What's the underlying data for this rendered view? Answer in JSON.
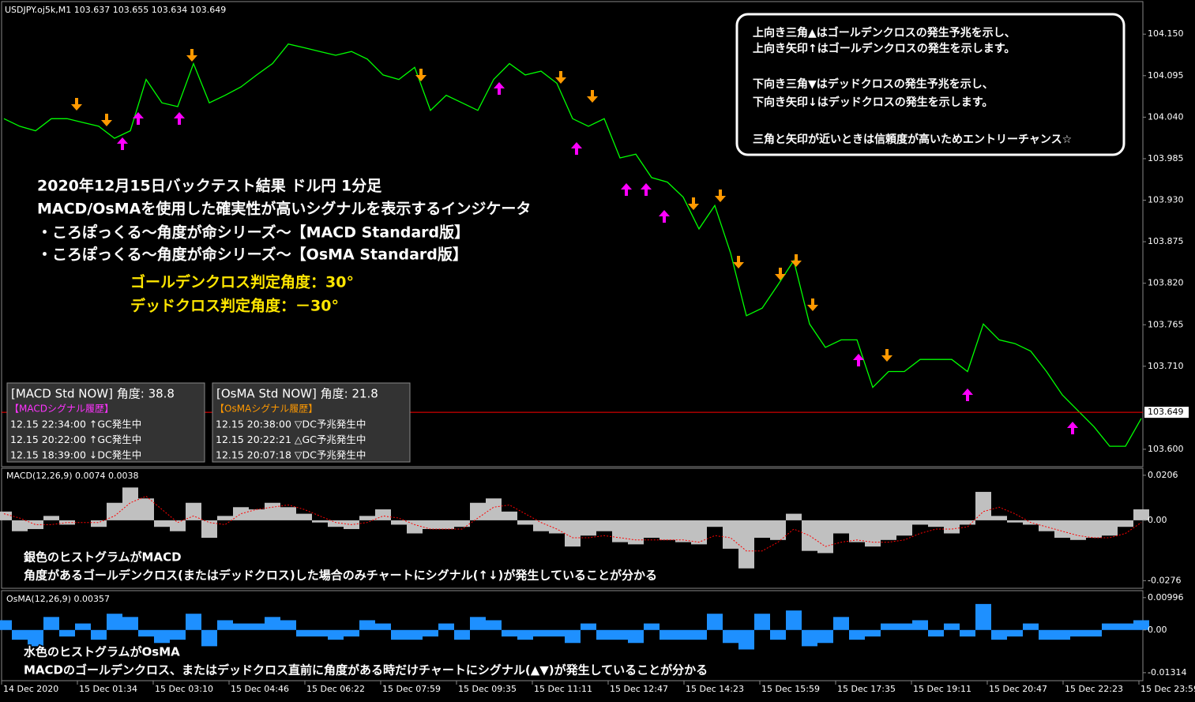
{
  "chart_data": [
    {
      "type": "line",
      "header": "USDJPY.oj5k,M1  103.637 103.655 103.634 103.649",
      "color": "#00ff00",
      "values": [
        104.038,
        104.028,
        104.022,
        104.038,
        104.038,
        104.033,
        104.028,
        104.012,
        104.022,
        104.09,
        104.059,
        104.054,
        104.111,
        104.059,
        104.069,
        104.08,
        104.096,
        104.111,
        104.137,
        104.132,
        104.127,
        104.122,
        104.127,
        104.117,
        104.096,
        104.09,
        104.106,
        104.049,
        104.069,
        104.059,
        104.049,
        104.09,
        104.111,
        104.096,
        104.101,
        104.085,
        104.038,
        104.028,
        104.038,
        103.986,
        103.991,
        103.96,
        103.954,
        103.934,
        103.892,
        103.923,
        103.86,
        103.777,
        103.787,
        103.818,
        103.85,
        103.766,
        103.735,
        103.745,
        103.745,
        103.682,
        103.703,
        103.703,
        103.719,
        103.719,
        103.719,
        103.703,
        103.766,
        103.745,
        103.74,
        103.73,
        103.703,
        103.672,
        103.651,
        103.63,
        103.604,
        103.604,
        103.641
      ],
      "ylim": [
        103.578,
        104.19
      ],
      "yticks": [
        {
          "value": 104.15,
          "label": "104.150"
        },
        104.095,
        {
          "value": 104.04,
          "label": "104.040"
        },
        103.985,
        {
          "value": 103.93,
          "label": "103.930"
        },
        103.875,
        {
          "value": 103.82,
          "label": "103.820"
        },
        103.765,
        {
          "value": 103.71,
          "label": "103.710"
        },
        {
          "value": 103.6,
          "label": "103.600"
        }
      ],
      "current_price": 103.649,
      "current_color": "#ff0000",
      "xlabels": [
        "14 Dec 2020",
        "15 Dec 01:34",
        "15 Dec 03:10",
        "15 Dec 04:46",
        "15 Dec 06:22",
        "15 Dec 07:59",
        "15 Dec 09:35",
        "15 Dec 11:11",
        "15 Dec 12:47",
        "15 Dec 14:23",
        "15 Dec 15:59",
        "15 Dec 17:35",
        "15 Dec 19:11",
        "15 Dec 20:47",
        "15 Dec 22:23",
        "15 Dec 23:59"
      ],
      "note_lines": [
        "上向き三角▲はゴールデンクロスの発生予兆を示し、",
        "上向き矢印↑はゴールデンクロスの発生を示します。",
        "下向き三角▼はデッドクロスの発生予兆を示し、",
        "下向き矢印↓はデッドクロスの発生を示します。",
        "三角と矢印が近いときは信頼度が高いためエントリーチャンス☆"
      ],
      "annotations": [
        "2020年12月15日バックテスト結果 ドル円 1分足",
        "MACD/OsMAを使用した確実性が高いシグナルを表示するインジケータ",
        "・ころぽっくる～角度が命シリーズ～【MACD Standard版】",
        "・ころぽっくる～角度が命シリーズ～【OsMA Standard版】"
      ],
      "thresholds": [
        "ゴールデンクロス判定角度：30°",
        "デッドクロス判定角度：－30°"
      ],
      "panels": [
        {
          "title": "[MACD Std NOW] 角度: 38.8",
          "subtitle": "【MACDシグナル履歴】",
          "color": "#ff33ff",
          "rows": [
            "12.15 22:34:00 ↑GC発生中",
            "12.15 20:22:00 ↑GC発生中",
            "12.15 18:39:00 ↓DC発生中"
          ]
        },
        {
          "title": "[OsMA Std NOW] 角度: 21.8",
          "subtitle": "【OsMAシグナル履歴】",
          "color": "#ff9900",
          "rows": [
            "12.15 20:38:00 ▽DC予兆発生中",
            "12.15 20:22:21 △GC予兆発生中",
            "12.15 20:07:18 ▽DC予兆発生中"
          ]
        }
      ]
    },
    {
      "type": "bar",
      "title": "MACD(12,26,9) 0.0074 0.0038",
      "series": [
        {
          "type": "bar",
          "color": "#c0c0c0",
          "values": [
            0.004,
            -0.005,
            -0.004,
            0.002,
            -0.002,
            0,
            -0.003,
            0.008,
            0.015,
            0.01,
            -0.003,
            -0.005,
            0.008,
            -0.008,
            0.002,
            0.006,
            0.005,
            0.008,
            0.006,
            0.003,
            -0.001,
            -0.003,
            -0.004,
            0.002,
            0.005,
            -0.002,
            -0.006,
            -0.004,
            -0.004,
            -0.003,
            0.008,
            0.01,
            0.004,
            -0.002,
            -0.005,
            -0.006,
            -0.012,
            -0.007,
            -0.005,
            -0.01,
            -0.011,
            -0.008,
            -0.009,
            -0.01,
            -0.011,
            -0.003,
            -0.013,
            -0.022,
            -0.008,
            -0.009,
            0.003,
            -0.014,
            -0.015,
            -0.006,
            -0.01,
            -0.012,
            -0.009,
            -0.007,
            -0.002,
            -0.003,
            -0.006,
            -0.002,
            0.013,
            0.002,
            -0.001,
            -0.002,
            -0.005,
            -0.008,
            -0.009,
            -0.008,
            -0.007,
            -0.003,
            0.005
          ]
        },
        {
          "type": "line",
          "color": "#ff0000",
          "values": [
            0.003,
            0.001,
            -0.002,
            -0.002,
            -0.001,
            -0.001,
            -0.001,
            0.002,
            0.008,
            0.011,
            0.005,
            -0.001,
            0.002,
            -0.001,
            -0.002,
            0.003,
            0.005,
            0.006,
            0.007,
            0.005,
            0.002,
            -0.001,
            -0.002,
            -0.001,
            0.002,
            0.001,
            -0.002,
            -0.004,
            -0.004,
            -0.004,
            0.001,
            0.006,
            0.007,
            0.003,
            -0.001,
            -0.004,
            -0.008,
            -0.008,
            -0.007,
            -0.008,
            -0.009,
            -0.009,
            -0.009,
            -0.009,
            -0.01,
            -0.007,
            -0.008,
            -0.014,
            -0.014,
            -0.01,
            -0.004,
            -0.007,
            -0.012,
            -0.01,
            -0.009,
            -0.01,
            -0.01,
            -0.009,
            -0.006,
            -0.004,
            -0.004,
            -0.003,
            0.004,
            0.006,
            0.003,
            -0.001,
            -0.003,
            -0.005,
            -0.007,
            -0.008,
            -0.008,
            -0.006,
            -0.001
          ]
        }
      ],
      "ylim": [
        -0.0311,
        0.0238
      ],
      "yticks": [
        0.0206,
        {
          "value": 0,
          "label": "0.00"
        },
        -0.0276
      ],
      "annotations": [
        "銀色のヒストグラムがMACD",
        "角度があるゴールデンクロス(またはデッドクロス)した場合のみチャートにシグナル(↑↓)が発生していることが分かる"
      ]
    },
    {
      "type": "bar",
      "title": "OsMA(12,26,9) 0.00357",
      "color": "#1e90ff",
      "values": [
        0.003,
        -0.003,
        -0.005,
        0.004,
        -0.002,
        0.002,
        -0.003,
        0.005,
        0.004,
        -0.002,
        -0.004,
        -0.003,
        0.005,
        -0.005,
        0.003,
        0.002,
        0.002,
        0.004,
        0.003,
        -0.002,
        -0.002,
        -0.003,
        -0.002,
        0.003,
        0.002,
        -0.003,
        -0.003,
        -0.002,
        0.002,
        -0.003,
        0.004,
        0.003,
        -0.002,
        -0.003,
        -0.002,
        -0.002,
        -0.004,
        0.002,
        -0.003,
        -0.003,
        -0.004,
        0.002,
        -0.003,
        -0.003,
        -0.003,
        0.005,
        -0.004,
        -0.006,
        0.005,
        -0.003,
        0.006,
        -0.005,
        -0.004,
        0.004,
        -0.003,
        -0.002,
        0.002,
        0.002,
        0.003,
        -0.002,
        0.002,
        -0.002,
        0.008,
        -0.003,
        -0.002,
        0.002,
        -0.003,
        -0.003,
        -0.002,
        -0.002,
        0.002,
        0.002,
        0.003
      ],
      "ylim": [
        -0.0156,
        0.0121
      ],
      "yticks": [
        0.00996,
        {
          "value": 0,
          "label": "0.00"
        },
        -0.01314
      ],
      "annotations": [
        "水色のヒストグラムがOsMA",
        "MACDのゴールデンクロス、またはデッドクロス直前に角度がある時だけチャートにシグナル(▲▼)が発生していることが分かる"
      ]
    }
  ]
}
